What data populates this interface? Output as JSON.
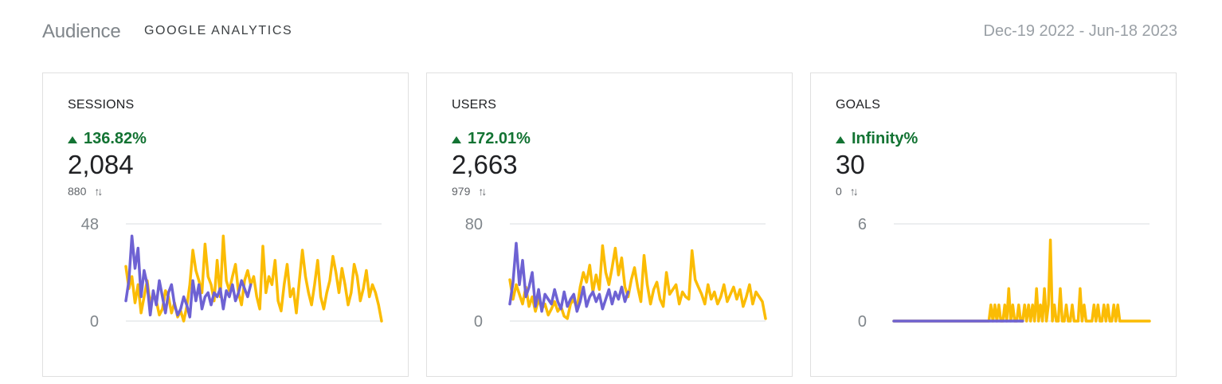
{
  "header": {
    "title": "Audience",
    "subtitle": "GOOGLE ANALYTICS",
    "date_range": "Dec-19 2022 - Jun-18 2023"
  },
  "colors": {
    "current": "#fbbc04",
    "previous": "#6e62d3",
    "positive": "#137333",
    "grid": "#dadce0"
  },
  "icons": {
    "up": "triangle-up-icon",
    "compare": "swap-vertical-icon"
  },
  "cards": [
    {
      "label": "SESSIONS",
      "change": "136.82%",
      "value": "2,084",
      "previous_value": "880",
      "compare_icon": "↑↓"
    },
    {
      "label": "USERS",
      "change": "172.01%",
      "value": "2,663",
      "previous_value": "979",
      "compare_icon": "↑↓"
    },
    {
      "label": "GOALS",
      "change": "Infinity%",
      "value": "30",
      "previous_value": "0",
      "compare_icon": "↑↓"
    }
  ],
  "chart_data": [
    {
      "type": "line",
      "title": "",
      "ylim": [
        0,
        48
      ],
      "y_ticks": [
        "48",
        "0"
      ],
      "series": [
        {
          "color": "#fbbc04",
          "values": [
            27,
            16,
            22,
            9,
            18,
            4,
            12,
            20,
            8,
            14,
            10,
            3,
            6,
            15,
            12,
            4,
            9,
            2,
            5,
            0,
            7,
            18,
            35,
            25,
            20,
            14,
            38,
            22,
            18,
            10,
            30,
            12,
            42,
            20,
            15,
            22,
            28,
            14,
            8,
            20,
            25,
            18,
            22,
            12,
            6,
            37,
            14,
            22,
            18,
            30,
            10,
            5,
            18,
            28,
            12,
            16,
            4,
            20,
            35,
            22,
            14,
            8,
            18,
            30,
            12,
            6,
            14,
            20,
            32,
            24,
            14,
            26,
            18,
            8,
            14,
            28,
            22,
            10,
            16,
            25,
            12,
            18,
            14,
            8,
            0
          ]
        },
        {
          "color": "#6e62d3",
          "values": [
            10,
            20,
            42,
            26,
            36,
            12,
            25,
            18,
            3,
            15,
            8,
            20,
            12,
            4,
            14,
            18,
            8,
            3,
            6,
            12,
            8,
            2,
            20,
            10,
            18,
            6,
            12,
            14,
            8,
            14,
            12,
            16,
            6,
            15,
            12,
            18,
            10,
            14,
            20,
            16,
            12,
            18
          ]
        }
      ]
    },
    {
      "type": "line",
      "title": "",
      "ylim": [
        0,
        80
      ],
      "y_ticks": [
        "80",
        "0"
      ],
      "series": [
        {
          "color": "#fbbc04",
          "values": [
            34,
            18,
            30,
            22,
            14,
            28,
            12,
            20,
            8,
            18,
            10,
            14,
            5,
            10,
            16,
            8,
            12,
            4,
            2,
            14,
            18,
            10,
            28,
            40,
            32,
            46,
            24,
            38,
            26,
            62,
            40,
            30,
            44,
            60,
            38,
            52,
            28,
            20,
            34,
            44,
            28,
            16,
            54,
            30,
            14,
            26,
            32,
            18,
            12,
            40,
            22,
            26,
            30,
            14,
            24,
            20,
            18,
            58,
            34,
            28,
            22,
            14,
            30,
            18,
            24,
            14,
            20,
            30,
            16,
            22,
            28,
            18,
            26,
            12,
            20,
            30,
            14,
            24,
            20,
            16,
            2
          ]
        },
        {
          "color": "#6e62d3",
          "values": [
            14,
            32,
            64,
            30,
            50,
            20,
            28,
            40,
            12,
            26,
            8,
            22,
            18,
            14,
            26,
            16,
            10,
            24,
            12,
            18,
            22,
            8,
            16,
            28,
            12,
            20,
            24,
            16,
            22,
            10,
            18,
            26,
            14,
            24,
            18,
            28,
            16,
            24
          ]
        }
      ]
    },
    {
      "type": "line",
      "title": "",
      "ylim": [
        0,
        6
      ],
      "y_ticks": [
        "6",
        "0"
      ],
      "series": [
        {
          "color": "#fbbc04",
          "values": [
            0,
            0,
            0,
            0,
            0,
            0,
            0,
            0,
            0,
            0,
            0,
            0,
            0,
            0,
            0,
            0,
            0,
            0,
            0,
            0,
            0,
            0,
            0,
            0,
            0,
            0,
            0,
            0,
            0,
            0,
            0,
            0,
            0,
            0,
            0,
            0,
            0,
            0,
            0,
            0,
            0,
            0,
            0,
            0,
            0,
            0,
            0,
            0,
            0,
            1,
            0,
            1,
            0,
            1,
            0,
            0,
            1,
            0,
            2,
            0,
            1,
            0,
            0,
            1,
            0,
            0,
            1,
            0,
            1,
            0,
            1,
            0,
            2,
            0,
            1,
            0,
            2,
            0,
            1,
            5,
            0,
            1,
            0,
            0,
            2,
            0,
            0,
            1,
            0,
            0,
            1,
            0,
            0,
            0,
            2,
            0,
            1,
            0,
            0,
            0,
            0,
            1,
            0,
            1,
            0,
            0,
            1,
            0,
            1,
            0,
            0,
            1,
            0,
            1,
            0,
            0,
            0,
            0,
            0,
            0,
            0,
            0,
            0,
            0,
            0,
            0,
            0,
            0,
            0,
            0
          ]
        },
        {
          "color": "#6e62d3",
          "values": [
            0,
            0,
            0,
            0,
            0,
            0,
            0,
            0,
            0,
            0,
            0,
            0,
            0,
            0,
            0,
            0,
            0,
            0,
            0,
            0,
            0,
            0,
            0,
            0,
            0,
            0,
            0,
            0,
            0,
            0,
            0,
            0,
            0,
            0,
            0,
            0,
            0,
            0,
            0,
            0,
            0,
            0,
            0,
            0,
            0,
            0,
            0,
            0,
            0,
            0,
            0,
            0,
            0,
            0,
            0,
            0,
            0,
            0,
            0,
            0,
            0,
            0,
            0,
            0,
            0,
            0
          ]
        }
      ]
    }
  ]
}
